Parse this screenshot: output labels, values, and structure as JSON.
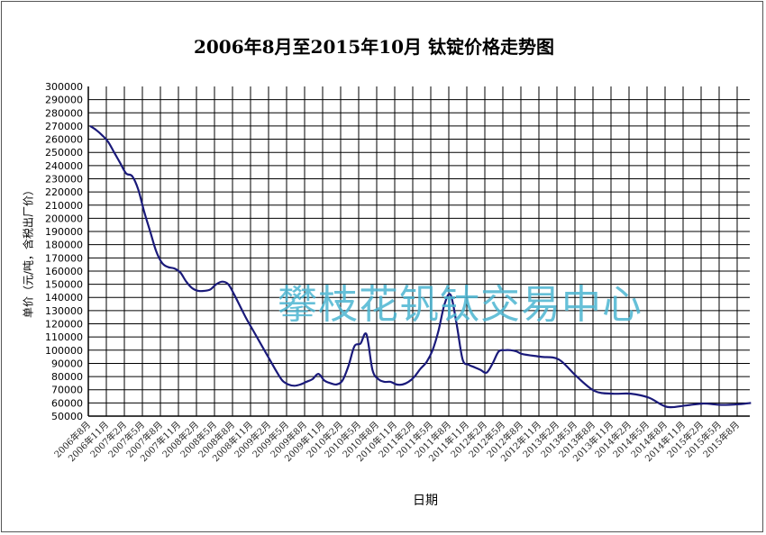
{
  "chart_data": {
    "type": "line",
    "title": "2006年8月至2015年10月 钛锭价格走势图",
    "xlabel": "日期",
    "ylabel": "单价（元/吨，含税出厂价）",
    "watermark": "攀枝花钒钛交易中心",
    "ylim": [
      50000,
      300000
    ],
    "ytick_step": 10000,
    "grid": true,
    "legend": "none",
    "line_color": "#1a1a7a",
    "watermark_color": "#4cb6d2",
    "xticks": [
      "2006年8月",
      "2006年11月",
      "2007年2月",
      "2007年5月",
      "2007年8月",
      "2007年11月",
      "2008年2月",
      "2008年5月",
      "2008年8月",
      "2008年11月",
      "2009年2月",
      "2009年5月",
      "2009年8月",
      "2009年11月",
      "2010年2月",
      "2010年5月",
      "2010年8月",
      "2010年11月",
      "2011年2月",
      "2011年5月",
      "2011年8月",
      "2011年11月",
      "2012年2月",
      "2012年5月",
      "2012年8月",
      "2012年11月",
      "2013年2月",
      "2013年5月",
      "2013年8月",
      "2013年11月",
      "2014年2月",
      "2014年5月",
      "2014年8月",
      "2014年11月",
      "2015年2月",
      "2015年5月",
      "2015年8月"
    ],
    "series": [
      {
        "x": [
          "2006-08",
          "2006-09",
          "2006-10",
          "2006-11",
          "2006-12",
          "2007-01",
          "2007-02",
          "2007-03",
          "2007-04",
          "2007-05",
          "2007-06",
          "2007-07",
          "2007-08",
          "2007-09",
          "2007-10",
          "2007-11",
          "2007-12",
          "2008-01",
          "2008-02",
          "2008-03",
          "2008-04",
          "2008-05",
          "2008-06",
          "2008-07",
          "2008-08",
          "2008-09",
          "2008-10",
          "2008-11",
          "2008-12",
          "2009-01",
          "2009-02",
          "2009-03",
          "2009-04",
          "2009-05",
          "2009-06",
          "2009-07",
          "2009-08",
          "2009-09",
          "2009-10",
          "2009-11",
          "2009-12",
          "2010-01",
          "2010-02",
          "2010-03",
          "2010-04",
          "2010-05",
          "2010-06",
          "2010-07",
          "2010-08",
          "2010-09",
          "2010-10",
          "2010-11",
          "2010-12",
          "2011-01",
          "2011-02",
          "2011-03",
          "2011-04",
          "2011-05",
          "2011-06",
          "2011-07",
          "2011-08",
          "2011-09",
          "2011-10",
          "2011-11",
          "2011-12",
          "2012-01",
          "2012-02",
          "2012-03",
          "2012-04",
          "2012-05",
          "2012-06",
          "2012-07",
          "2012-08",
          "2012-11",
          "2013-02",
          "2013-05",
          "2013-08",
          "2013-11",
          "2014-02",
          "2014-05",
          "2014-08",
          "2014-11",
          "2015-02",
          "2015-05",
          "2015-08",
          "2015-10"
        ],
        "y": [
          270000,
          267000,
          263000,
          258000,
          250000,
          242000,
          234000,
          232000,
          222000,
          205000,
          190000,
          175000,
          166000,
          163000,
          162000,
          159000,
          152000,
          147000,
          145000,
          145000,
          146000,
          150000,
          152000,
          150000,
          142000,
          133000,
          124000,
          116000,
          108000,
          100000,
          92000,
          84000,
          77000,
          74000,
          73000,
          74000,
          76000,
          78000,
          82000,
          77000,
          75000,
          74000,
          77000,
          88000,
          103000,
          105000,
          112000,
          85000,
          78000,
          76000,
          76000,
          74000,
          74000,
          76000,
          80000,
          86000,
          91000,
          100000,
          115000,
          135000,
          142000,
          120000,
          93000,
          89000,
          87000,
          85000,
          83000,
          90000,
          99000,
          100000,
          100000,
          99000,
          97000,
          95000,
          93000,
          80000,
          69000,
          67000,
          67000,
          64000,
          57000,
          58000,
          59500,
          58500,
          59000,
          60000
        ]
      }
    ]
  }
}
